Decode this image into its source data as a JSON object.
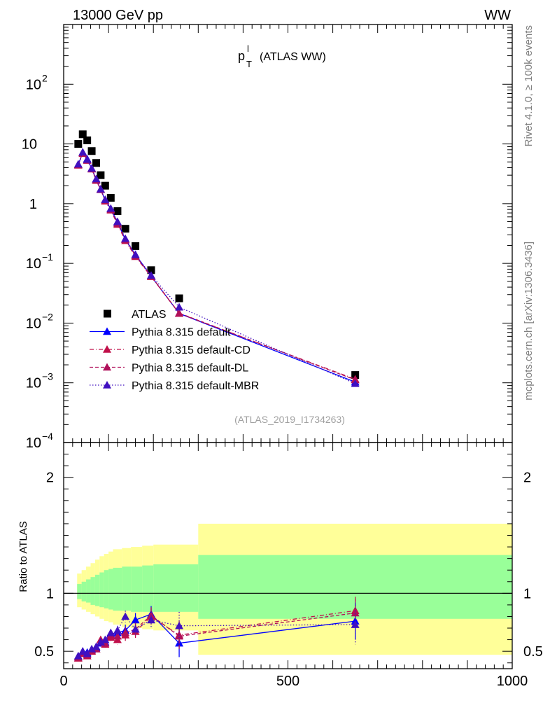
{
  "header": {
    "energy_label": "13000 GeV pp",
    "process_label": "WW"
  },
  "side_labels": {
    "rivet": "Rivet 4.1.0, ≥ 100k events",
    "mcplots": "mcplots.cern.ch [arXiv:1306.3436]"
  },
  "chart_data": [
    {
      "type": "scatter",
      "title": "p_T^l (ATLAS WW)",
      "title_main": "p",
      "title_sub": "T",
      "title_sup": "l",
      "title_rest": "(ATLAS WW)",
      "analysis_id": "(ATLAS_2019_I1734263)",
      "xlabel": "",
      "ylabel": "",
      "xlim": [
        0,
        1000
      ],
      "ylim": [
        0.0001,
        1000
      ],
      "yscale": "log",
      "y_tick_labels": [
        {
          "base": "10",
          "exp": "2",
          "value": 100
        },
        {
          "base": "10",
          "exp": "",
          "value": 10
        },
        {
          "base": "1",
          "exp": "",
          "value": 1
        },
        {
          "base": "10",
          "exp": "−1",
          "value": 0.1
        },
        {
          "base": "10",
          "exp": "−2",
          "value": 0.01
        },
        {
          "base": "10",
          "exp": "−3",
          "value": 0.001
        },
        {
          "base": "10",
          "exp": "−4",
          "value": 0.0001
        }
      ],
      "legend_position": "bottom-left",
      "x": [
        32.5,
        42.5,
        52.5,
        62.5,
        72.5,
        82.5,
        92.5,
        105,
        120,
        137.5,
        160,
        195,
        257.5,
        650
      ],
      "series": [
        {
          "name": "ATLAS",
          "color": "#000000",
          "marker": "square",
          "line": "none",
          "values": [
            10.0,
            14.5,
            11.5,
            7.6,
            4.8,
            3.0,
            2.0,
            1.25,
            0.75,
            0.38,
            0.195,
            0.077,
            0.026,
            0.00135
          ]
        },
        {
          "name": "Pythia 8.315 default",
          "color": "#0000ff",
          "marker": "triangle",
          "line": "solid",
          "values": [
            4.5,
            7.2,
            5.6,
            3.9,
            2.55,
            1.72,
            1.15,
            0.82,
            0.49,
            0.25,
            0.14,
            0.061,
            0.0145,
            0.00103
          ]
        },
        {
          "name": "Pythia 8.315 default-CD",
          "color": "#c0104a",
          "marker": "triangle",
          "line": "dashdot",
          "values": [
            4.4,
            6.9,
            5.3,
            3.8,
            2.45,
            1.72,
            1.1,
            0.78,
            0.45,
            0.24,
            0.13,
            0.06,
            0.0145,
            0.00115
          ]
        },
        {
          "name": "Pythia 8.315 default-DL",
          "color": "#b0105a",
          "marker": "triangle",
          "line": "dashed",
          "values": [
            4.5,
            7.1,
            5.4,
            3.9,
            2.5,
            1.75,
            1.15,
            0.8,
            0.47,
            0.25,
            0.135,
            0.061,
            0.0147,
            0.00112
          ]
        },
        {
          "name": "Pythia 8.315 default-MBR",
          "color": "#4010c0",
          "marker": "triangle",
          "line": "dotted",
          "values": [
            4.6,
            7.3,
            5.5,
            3.9,
            2.6,
            1.75,
            1.17,
            0.83,
            0.5,
            0.26,
            0.14,
            0.063,
            0.0185,
            0.00097
          ]
        }
      ]
    },
    {
      "type": "scatter",
      "title": "",
      "xlabel": "",
      "ylabel": "Ratio to ATLAS",
      "xlim": [
        0,
        1000
      ],
      "ylim": [
        0.35,
        2.3
      ],
      "y_tick_labels": [
        "0.5",
        "1",
        "2"
      ],
      "y_tick_values": [
        0.5,
        1,
        2
      ],
      "x_tick_labels": [
        "0",
        "500",
        "1000"
      ],
      "x_tick_values": [
        0,
        500,
        1000
      ],
      "reference_line": 1,
      "bands": {
        "x_edges": [
          30,
          40,
          50,
          60,
          70,
          80,
          90,
          100,
          110,
          130,
          150,
          175,
          200,
          300,
          1000
        ],
        "yellow": {
          "color": "#ffff99",
          "lower": [
            0.88,
            0.86,
            0.84,
            0.82,
            0.8,
            0.78,
            0.76,
            0.75,
            0.73,
            0.71,
            0.7,
            0.69,
            0.68,
            0.47
          ],
          "upper": [
            1.17,
            1.2,
            1.23,
            1.26,
            1.29,
            1.32,
            1.34,
            1.36,
            1.38,
            1.39,
            1.4,
            1.41,
            1.42,
            1.6
          ]
        },
        "green": {
          "color": "#99ff99",
          "lower": [
            0.95,
            0.93,
            0.92,
            0.9,
            0.89,
            0.88,
            0.87,
            0.86,
            0.85,
            0.85,
            0.84,
            0.84,
            0.84,
            0.78
          ],
          "upper": [
            1.08,
            1.1,
            1.12,
            1.14,
            1.16,
            1.18,
            1.2,
            1.21,
            1.22,
            1.23,
            1.23,
            1.24,
            1.25,
            1.33
          ]
        }
      },
      "x": [
        32.5,
        42.5,
        52.5,
        62.5,
        72.5,
        82.5,
        92.5,
        105,
        120,
        137.5,
        160,
        195,
        257.5,
        650
      ],
      "series": [
        {
          "name": "Pythia 8.315 default",
          "color": "#0000ff",
          "values": [
            0.45,
            0.5,
            0.49,
            0.51,
            0.53,
            0.57,
            0.58,
            0.65,
            0.66,
            0.68,
            0.77,
            0.82,
            0.57,
            0.76
          ],
          "errors": [
            0.02,
            0.02,
            0.02,
            0.02,
            0.02,
            0.03,
            0.03,
            0.03,
            0.04,
            0.05,
            0.06,
            0.07,
            0.12,
            0.16
          ]
        },
        {
          "name": "Pythia 8.315 default-CD",
          "color": "#c0104a",
          "values": [
            0.44,
            0.48,
            0.46,
            0.5,
            0.52,
            0.6,
            0.56,
            0.62,
            0.6,
            0.64,
            0.67,
            0.8,
            0.64,
            0.85
          ],
          "errors": [
            0.02,
            0.02,
            0.02,
            0.02,
            0.02,
            0.03,
            0.03,
            0.03,
            0.04,
            0.05,
            0.06,
            0.07,
            0.12,
            0.12
          ]
        },
        {
          "name": "Pythia 8.315 default-DL",
          "color": "#b0105a",
          "values": [
            0.45,
            0.49,
            0.47,
            0.51,
            0.52,
            0.58,
            0.57,
            0.64,
            0.63,
            0.66,
            0.69,
            0.81,
            0.63,
            0.83
          ],
          "errors": [
            0.02,
            0.02,
            0.02,
            0.02,
            0.02,
            0.03,
            0.03,
            0.03,
            0.04,
            0.05,
            0.06,
            0.07,
            0.12,
            0.12
          ]
        },
        {
          "name": "Pythia 8.315 default-MBR",
          "color": "#4010c0",
          "values": [
            0.46,
            0.5,
            0.48,
            0.52,
            0.54,
            0.58,
            0.6,
            0.66,
            0.68,
            0.8,
            0.69,
            0.77,
            0.72,
            0.73
          ],
          "errors": [
            0.02,
            0.02,
            0.02,
            0.02,
            0.02,
            0.03,
            0.03,
            0.03,
            0.04,
            0.05,
            0.06,
            0.07,
            0.12,
            0.17
          ]
        }
      ]
    }
  ]
}
